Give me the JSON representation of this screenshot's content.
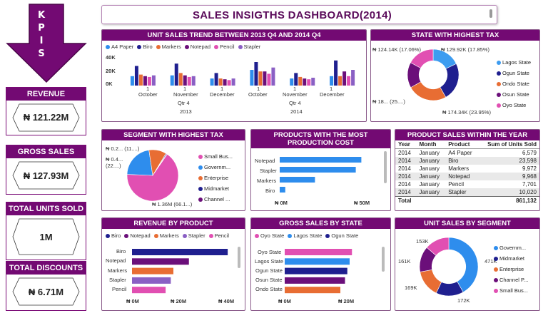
{
  "kpi": {
    "letters": [
      "K",
      "P",
      "I",
      "S"
    ],
    "cards": [
      {
        "label": "REVENUE",
        "value": "₦ 121.22M"
      },
      {
        "label": "GROSS SALES",
        "value": "₦ 127.93M"
      },
      {
        "label": "TOTAL UNITS SOLD",
        "value": "1M"
      },
      {
        "label": "TOTAL DISCOUNTS",
        "value": "₦ 6.71M"
      }
    ]
  },
  "title": "SALES INSIGTHS DASHBOARD(2014)",
  "colors": {
    "purple": "#730a73",
    "blue": "#2e8ded",
    "navy": "#1f1f8f",
    "orange": "#e86d33",
    "violet": "#6b0f7a",
    "pink": "#e14fb2",
    "lightblue": "#3d9cf0"
  },
  "unit_trend": {
    "title": "UNIT SALES TREND BETWEEN 2013 Q4 AND 2014 Q4",
    "legend": [
      "A4 Paper",
      "Biro",
      "Markers",
      "Notepad",
      "Pencil",
      "Stapler"
    ],
    "yticks": [
      "40K",
      "20K",
      "0K"
    ],
    "months": [
      "October",
      "November",
      "December",
      "October",
      "November",
      "December"
    ],
    "day": "1",
    "quarter": "Qtr 4",
    "years": [
      "2013",
      "2014"
    ],
    "chart_data": {
      "type": "bar",
      "categories": [
        "2013 Oct",
        "2013 Nov",
        "2013 Dec",
        "2014 Oct",
        "2014 Nov",
        "2014 Dec"
      ],
      "ylim": [
        0,
        40000
      ],
      "series": [
        {
          "name": "A4 Paper",
          "values": [
            12000,
            13000,
            9000,
            20000,
            9000,
            12000
          ]
        },
        {
          "name": "Biro",
          "values": [
            25000,
            28000,
            16000,
            30000,
            16000,
            32000
          ]
        },
        {
          "name": "Markers",
          "values": [
            14000,
            16000,
            9000,
            18000,
            11000,
            12000
          ]
        },
        {
          "name": "Notepad",
          "values": [
            12000,
            13000,
            8000,
            18000,
            9000,
            18000
          ]
        },
        {
          "name": "Pencil",
          "values": [
            11000,
            11000,
            7000,
            15000,
            8000,
            12000
          ]
        },
        {
          "name": "Stapler",
          "values": [
            13000,
            12000,
            9000,
            23000,
            10000,
            20000
          ]
        }
      ]
    }
  },
  "state_tax": {
    "title": "STATE WITH HIGHEST TAX",
    "labels": [
      "₦ 124.14K (17.06%)",
      "₦ 129.92K (17.85%)",
      "₦ 18... (25....)",
      "₦ 174.34K (23.95%)"
    ],
    "legend": [
      "Lagos State",
      "Ogun State",
      "Ondo State",
      "Osun State",
      "Oyo State"
    ],
    "chart_data": {
      "type": "pie",
      "categories": [
        "Lagos State",
        "Ogun State",
        "Ondo State",
        "Osun State",
        "Oyo State"
      ],
      "values": [
        17.85,
        23.95,
        25.0,
        16.14,
        17.06
      ]
    }
  },
  "segment_tax": {
    "title": "SEGMENT WITH HIGHEST TAX",
    "labels": [
      "₦ 0.2... (11....)",
      "₦ 0.4...",
      "(22....)",
      "₦ 1.36M (66.1...)"
    ],
    "legend": [
      "Small Bus...",
      "Governm...",
      "Enterprise",
      "Midmarket",
      "Channel ..."
    ],
    "chart_data": {
      "type": "pie",
      "categories": [
        "Small Business",
        "Government",
        "Enterprise",
        "Midmarket",
        "Channel Partners"
      ],
      "values": [
        66.1,
        22.0,
        11.0,
        0.5,
        0.4
      ]
    }
  },
  "production": {
    "title": "PRODUCTS WITH THE MOST PRODUCTION COST",
    "xticks": [
      "₦ 0M",
      "₦ 50M"
    ],
    "chart_data": {
      "type": "bar",
      "categories": [
        "Notepad",
        "Stapler",
        "Markers",
        "Biro"
      ],
      "values": [
        44,
        41,
        19,
        3
      ],
      "xlabel": "",
      "xlim": [
        0,
        50
      ]
    }
  },
  "product_sales": {
    "title": "PRODUCT SALES WITHIN THE YEAR",
    "headers": [
      "Year",
      "Month",
      "Product",
      "Sum of Units Sold"
    ],
    "rows": [
      [
        "2014",
        "January",
        "A4 Paper",
        "6,579"
      ],
      [
        "2014",
        "January",
        "Biro",
        "23,598"
      ],
      [
        "2014",
        "January",
        "Markers",
        "9,972"
      ],
      [
        "2014",
        "January",
        "Notepad",
        "9,968"
      ],
      [
        "2014",
        "January",
        "Pencil",
        "7,701"
      ],
      [
        "2014",
        "January",
        "Stapler",
        "10,020"
      ]
    ],
    "total_label": "Total",
    "total_value": "861,132"
  },
  "rev_product": {
    "title": "REVENUE BY PRODUCT",
    "legend": [
      "Biro",
      "Notepad",
      "Markers",
      "Stapler",
      "Pencil"
    ],
    "xticks": [
      "₦ 0M",
      "₦ 20M",
      "₦ 40M"
    ],
    "chart_data": {
      "type": "bar",
      "categories": [
        "Biro",
        "Notepad",
        "Markers",
        "Stapler",
        "Pencil"
      ],
      "values": [
        37,
        22,
        16,
        15,
        13
      ],
      "xlim": [
        0,
        40
      ]
    }
  },
  "gross_state": {
    "title": "GROSS SALES BY STATE",
    "legend": [
      "Oyo State",
      "Lagos State",
      "Ogun State"
    ],
    "xticks": [
      "₦ 0M",
      "₦ 20M"
    ],
    "chart_data": {
      "type": "bar",
      "categories": [
        "Oyo State",
        "Lagos State",
        "Ogun State",
        "Osun State",
        "Ondo State"
      ],
      "values": [
        29,
        28,
        27,
        26,
        24
      ],
      "xlim": [
        0,
        40
      ]
    }
  },
  "unit_segment": {
    "title": "UNIT SALES BY SEGMENT",
    "labels": [
      "153K",
      "161K",
      "169K",
      "172K",
      "471K"
    ],
    "legend": [
      "Governm...",
      "Midmarket",
      "Enterprise",
      "Channel P...",
      "Small Bus..."
    ],
    "chart_data": {
      "type": "pie",
      "categories": [
        "Government",
        "Midmarket",
        "Enterprise",
        "Channel Partners",
        "Small Business"
      ],
      "values": [
        471,
        172,
        169,
        161,
        153
      ]
    }
  }
}
